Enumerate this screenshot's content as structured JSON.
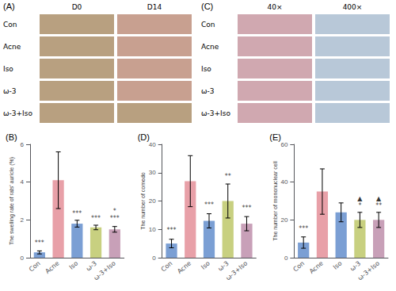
{
  "chart_data": [
    {
      "type": "image_grid",
      "title": "(A)",
      "columns": [
        "D0",
        "D14"
      ],
      "rows": [
        "Con",
        "Acne",
        "Iso",
        "ω-3",
        "ω-3+Iso"
      ]
    },
    {
      "type": "image_grid",
      "title": "(C)",
      "columns": [
        "40×",
        "400×"
      ],
      "rows": [
        "Con",
        "Acne",
        "Iso",
        "ω-3",
        "ω-3+Iso"
      ]
    },
    {
      "type": "bar",
      "title": "(B)",
      "categories": [
        "Con",
        "Acne",
        "Iso",
        "ω-3",
        "ω-3+Iso"
      ],
      "values": [
        0.28,
        4.1,
        1.8,
        1.6,
        1.5
      ],
      "errors": [
        0.08,
        1.5,
        0.18,
        0.12,
        0.15
      ],
      "colors": [
        "#7b9fd4",
        "#e8a0a8",
        "#7b9fd4",
        "#c8d080",
        "#c8a0b8"
      ],
      "ylabel": "The swelling rate of rats' auricle (%)",
      "ylim": [
        0,
        6
      ],
      "yticks": [
        0,
        2,
        4,
        6
      ],
      "grid": false,
      "annotations": [
        {
          "category": "Con",
          "text": "***",
          "y": 0.55
        },
        {
          "category": "Iso",
          "text": "***",
          "y": 2.1
        },
        {
          "category": "ω-3",
          "text": "***",
          "y": 1.85
        },
        {
          "category": "ω-3+Iso",
          "text": "*\n***",
          "y": 1.85
        }
      ]
    },
    {
      "type": "bar",
      "title": "(D)",
      "categories": [
        "Con",
        "Acne",
        "Iso",
        "ω-3",
        "ω-3+Iso"
      ],
      "values": [
        5,
        27,
        13,
        20,
        12
      ],
      "errors": [
        1.5,
        9,
        2.5,
        6,
        2.5
      ],
      "colors": [
        "#7b9fd4",
        "#e8a0a8",
        "#7b9fd4",
        "#c8d080",
        "#c8a0b8"
      ],
      "ylabel": "The number of comedo",
      "ylim": [
        0,
        40
      ],
      "yticks": [
        0,
        10,
        20,
        30,
        40
      ],
      "grid": false,
      "annotations": [
        {
          "category": "Con",
          "text": "***",
          "y": 8
        },
        {
          "category": "Iso",
          "text": "***",
          "y": 17
        },
        {
          "category": "ω-3",
          "text": "**",
          "y": 27
        },
        {
          "category": "ω-3+Iso",
          "text": "***",
          "y": 16
        }
      ]
    },
    {
      "type": "bar",
      "title": "(E)",
      "categories": [
        "Con",
        "Acne",
        "Iso",
        "ω-3",
        "ω-3+Iso"
      ],
      "values": [
        8,
        35,
        24,
        20,
        20
      ],
      "errors": [
        3,
        12,
        5,
        4,
        4
      ],
      "colors": [
        "#7b9fd4",
        "#e8a0a8",
        "#7b9fd4",
        "#c8d080",
        "#c8a0b8"
      ],
      "ylabel": "The number of mononuclear cell",
      "ylim": [
        0,
        60
      ],
      "yticks": [
        0,
        20,
        40,
        60
      ],
      "grid": false,
      "annotations": [
        {
          "category": "Con",
          "text": "***",
          "y": 13
        },
        {
          "category": "ω-3",
          "text": "▲\n*",
          "y": 25
        },
        {
          "category": "ω-3+Iso",
          "text": "▲\n**",
          "y": 25
        }
      ]
    }
  ]
}
